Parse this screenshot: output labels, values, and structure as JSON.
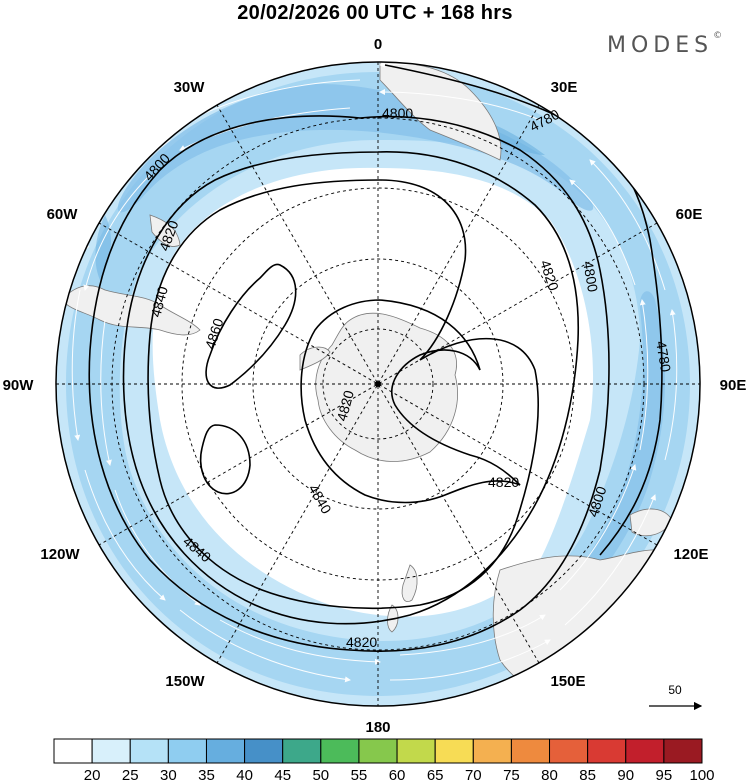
{
  "title": "20/02/2026  00 UTC  + 168 hrs",
  "brand": {
    "name": "MODES",
    "mark": "©"
  },
  "longitude_labels": {
    "n0": "0",
    "e30": "30E",
    "e60": "60E",
    "e90": "90E",
    "e120": "120E",
    "e150": "150E",
    "s180": "180",
    "w150": "150W",
    "w120": "120W",
    "w90": "90W",
    "w60": "60W",
    "w30": "30W"
  },
  "contour_labels": {
    "c4800a": "4800",
    "c4780a": "4780",
    "c4800b": "4800",
    "c4820a": "4820",
    "c4840a": "4840",
    "c4800c": "4800",
    "c4780b": "4780",
    "c4860": "4860",
    "c4820b": "4820",
    "c4820c": "4820",
    "c4840b": "4840",
    "c4820d": "4820",
    "c4800d": "4800",
    "c4840c": "4840",
    "c4820e": "4820"
  },
  "reference_vector": {
    "label": "50"
  },
  "colorbar": {
    "ticks": [
      "20",
      "25",
      "30",
      "35",
      "40",
      "45",
      "50",
      "55",
      "60",
      "65",
      "70",
      "75",
      "80",
      "85",
      "90",
      "95",
      "100"
    ],
    "colors": [
      "#ffffff",
      "#d8f0fb",
      "#b5e2f7",
      "#8fcdf0",
      "#66aedf",
      "#4690c8",
      "#3da88a",
      "#4cbb5a",
      "#86c84c",
      "#c2d94b",
      "#f7dc55",
      "#f4b050",
      "#ee8a3e",
      "#e5603a",
      "#d93a33",
      "#c21f2c",
      "#9a1a22"
    ]
  },
  "colors": {
    "land": "#f0f0f0",
    "coast": "#7a7a7a",
    "jet_light": "#c6e6f8",
    "jet_mid": "#a6d6f2",
    "jet_core": "#86c0ea"
  }
}
